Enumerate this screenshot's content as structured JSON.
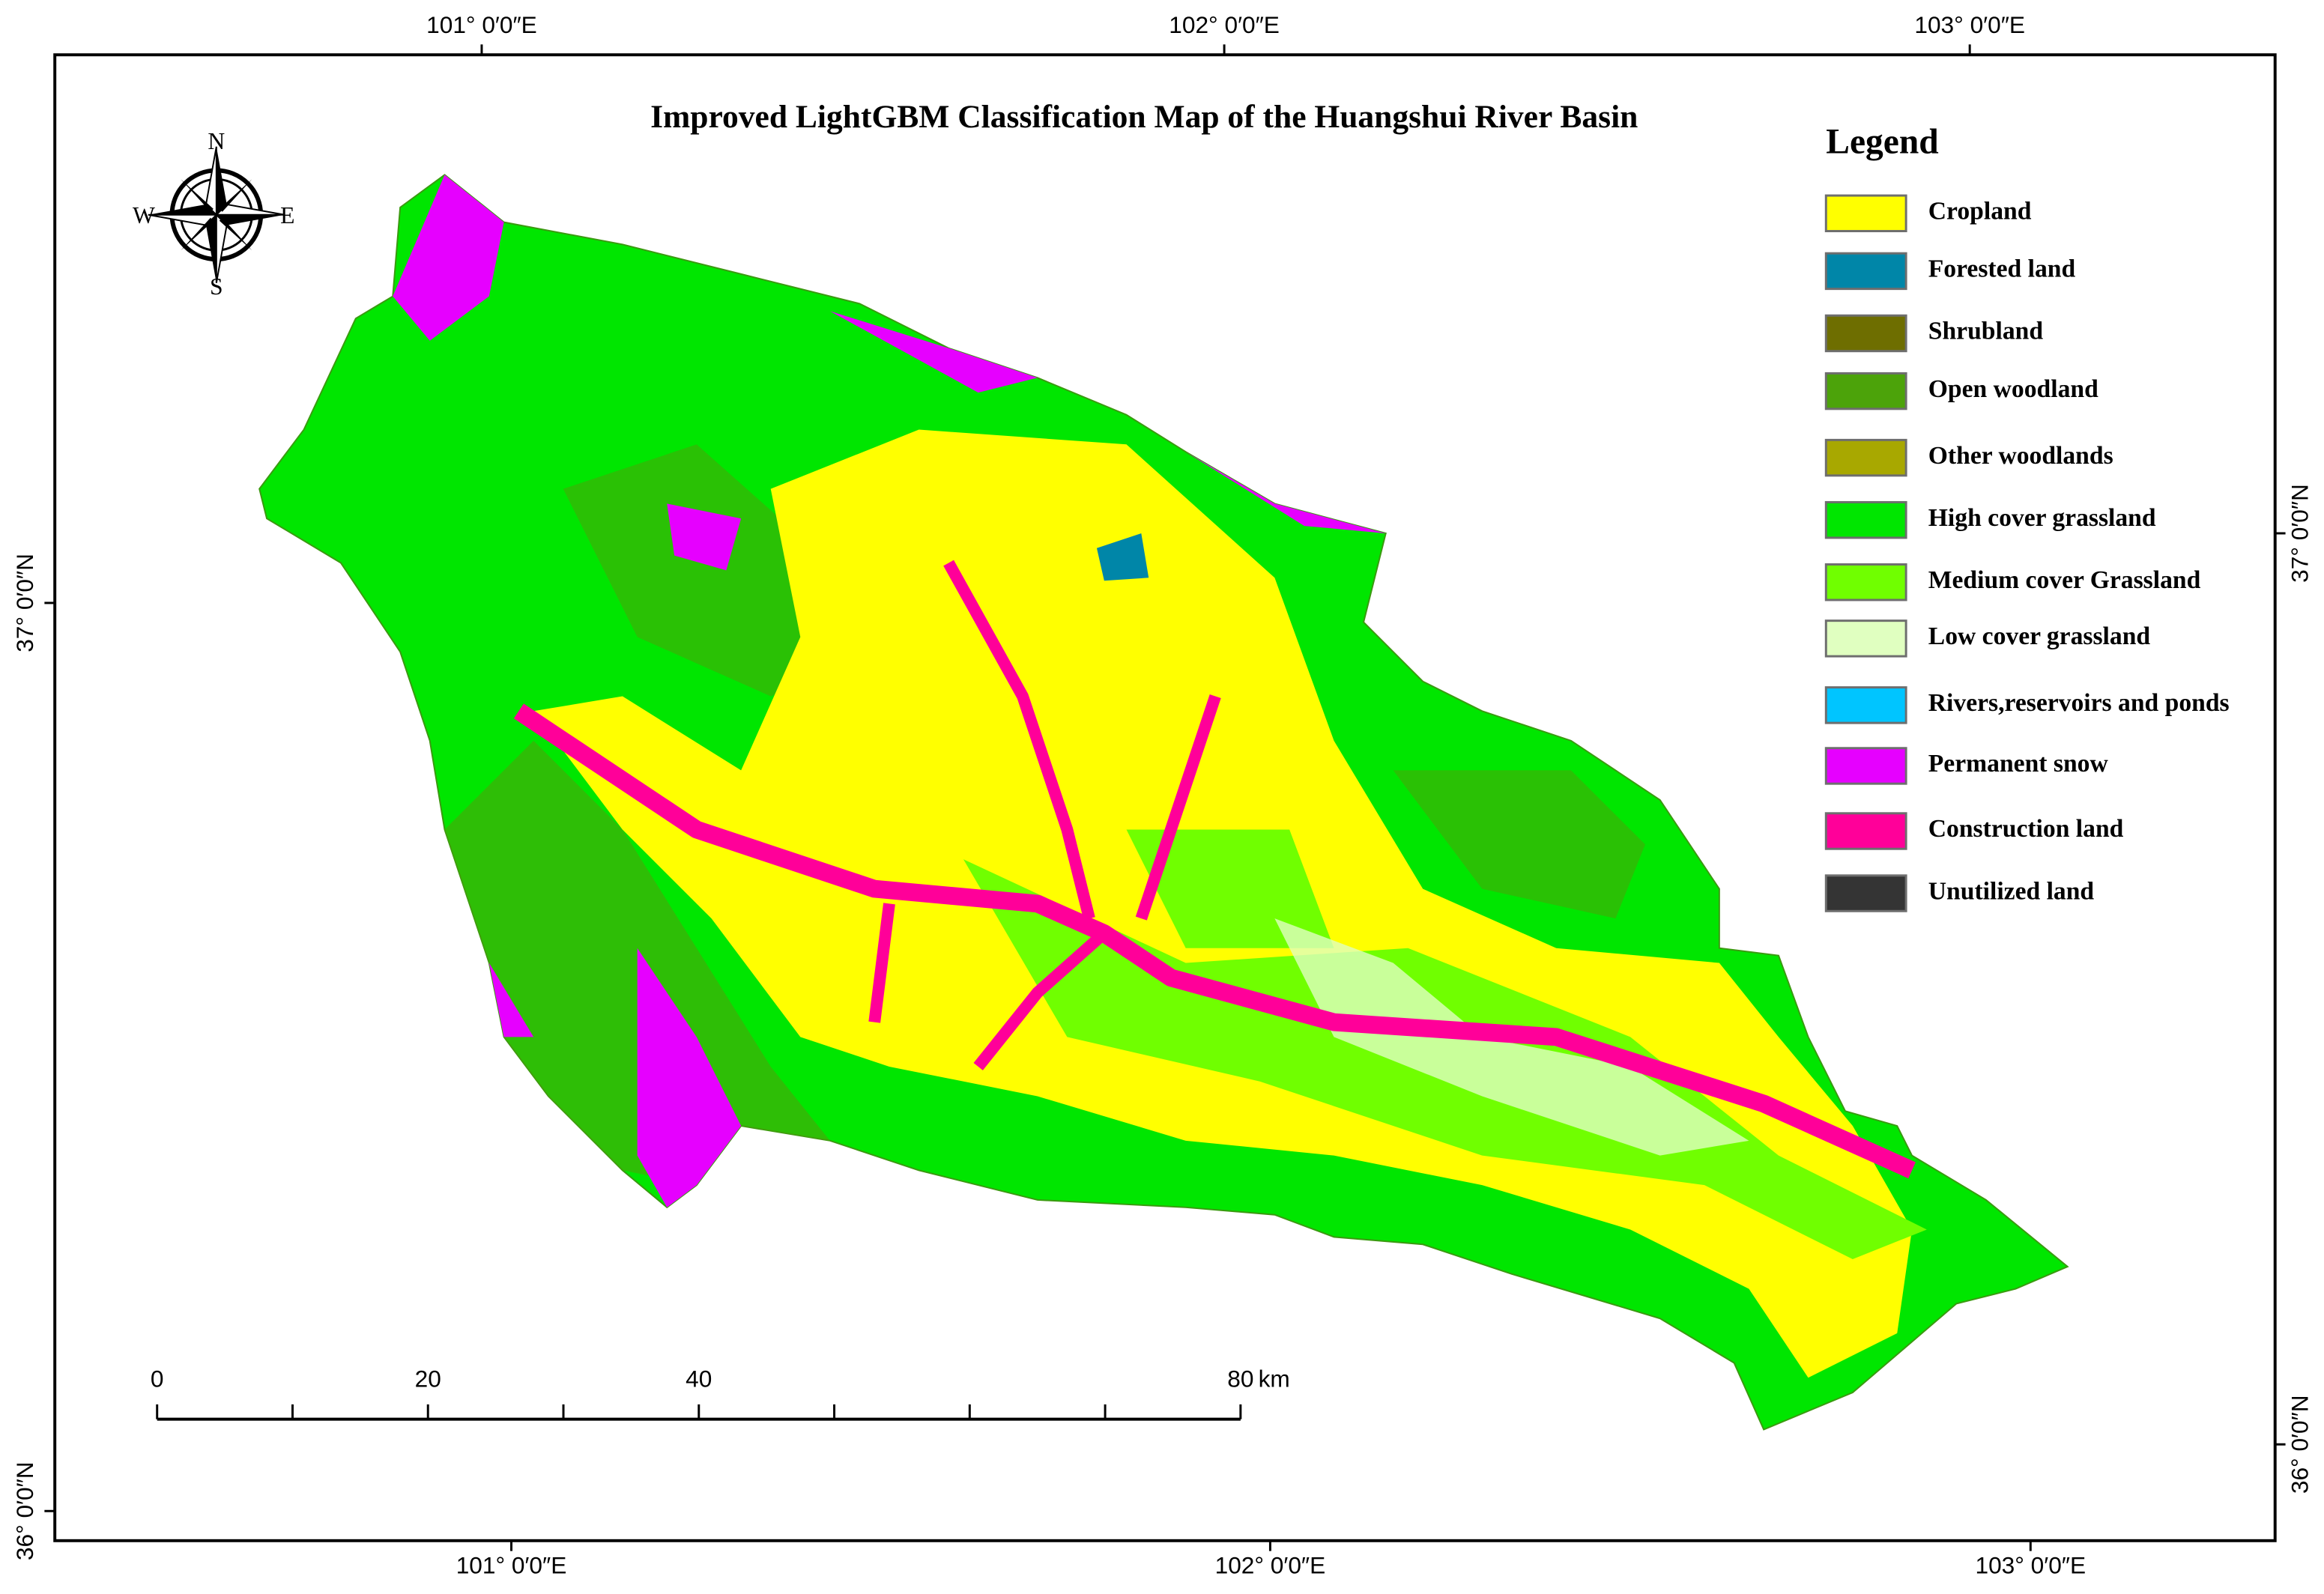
{
  "title": "Improved LightGBM Classification Map of the Huangshui River Basin",
  "legend": {
    "title": "Legend",
    "items": [
      {
        "label": "Cropland",
        "color": "#ffff00"
      },
      {
        "label": "Forested land",
        "color": "#0086a8"
      },
      {
        "label": "Shrubland",
        "color": "#6e6e00"
      },
      {
        "label": "Open woodland",
        "color": "#4ca30a"
      },
      {
        "label": "Other woodlands",
        "color": "#a8a800"
      },
      {
        "label": "High cover grassland",
        "color": "#00e600"
      },
      {
        "label": "Medium cover Grassland",
        "color": "#70ff00"
      },
      {
        "label": "Low cover grassland",
        "color": "#e0ffc0"
      },
      {
        "label": "Rivers,reservoirs and ponds",
        "color": "#00c5ff"
      },
      {
        "label": "Permanent snow",
        "color": "#e600ff"
      },
      {
        "label": "Construction land",
        "color": "#ff0099"
      },
      {
        "label": "Unutilized land",
        "color": "#343434"
      }
    ]
  },
  "graticule": {
    "top": [
      "101° 0′0″E",
      "102° 0′0″E",
      "103° 0′0″E"
    ],
    "bottom": [
      "101° 0′0″E",
      "102° 0′0″E",
      "103° 0′0″E"
    ],
    "left": [
      "37° 0′0″N",
      "36° 0′0″N"
    ],
    "right": [
      "37° 0′0″N",
      "36° 0′0″N"
    ]
  },
  "scale_bar": {
    "ticks": [
      0,
      20,
      40,
      80
    ],
    "unit": "km"
  },
  "compass": {
    "north": "N",
    "south": "S",
    "east": "E",
    "west": "W"
  }
}
